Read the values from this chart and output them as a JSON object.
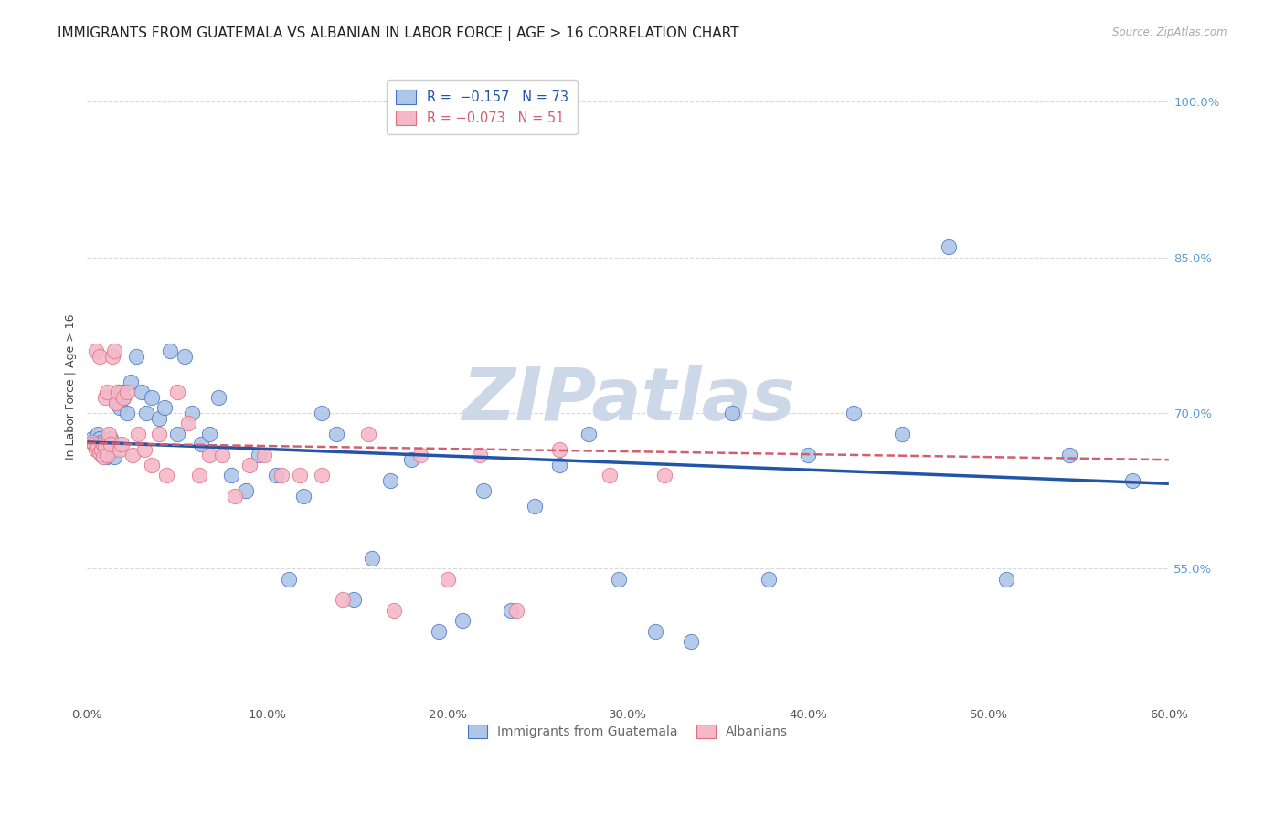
{
  "title": "IMMIGRANTS FROM GUATEMALA VS ALBANIAN IN LABOR FORCE | AGE > 16 CORRELATION CHART",
  "source": "Source: ZipAtlas.com",
  "ylabel": "In Labor Force | Age > 16",
  "xlim": [
    0.0,
    0.6
  ],
  "ylim": [
    0.42,
    1.03
  ],
  "xticks": [
    0.0,
    0.1,
    0.2,
    0.3,
    0.4,
    0.5,
    0.6
  ],
  "xticklabels": [
    "0.0%",
    "10.0%",
    "20.0%",
    "30.0%",
    "40.0%",
    "50.0%",
    "60.0%"
  ],
  "ytick_right_values": [
    0.55,
    0.7,
    0.85,
    1.0
  ],
  "ytick_right_labels": [
    "55.0%",
    "70.0%",
    "85.0%",
    "100.0%"
  ],
  "color_blue_fill": "#aec6e8",
  "color_blue_edge": "#4472c4",
  "color_blue_line": "#2155a8",
  "color_pink_fill": "#f4b8c8",
  "color_pink_edge": "#e07080",
  "color_pink_line": "#d06070",
  "axis_right_color": "#5b9bd5",
  "grid_color": "#d8d8e0",
  "bg_color": "#ffffff",
  "watermark_color": "#ccd8e8",
  "blue_x": [
    0.003,
    0.004,
    0.005,
    0.005,
    0.006,
    0.006,
    0.007,
    0.007,
    0.008,
    0.008,
    0.009,
    0.009,
    0.01,
    0.01,
    0.011,
    0.011,
    0.012,
    0.012,
    0.013,
    0.013,
    0.014,
    0.015,
    0.016,
    0.017,
    0.018,
    0.019,
    0.02,
    0.022,
    0.024,
    0.027,
    0.03,
    0.033,
    0.036,
    0.04,
    0.043,
    0.046,
    0.05,
    0.054,
    0.058,
    0.063,
    0.068,
    0.073,
    0.08,
    0.088,
    0.095,
    0.105,
    0.112,
    0.12,
    0.13,
    0.138,
    0.148,
    0.158,
    0.168,
    0.18,
    0.195,
    0.208,
    0.22,
    0.235,
    0.248,
    0.262,
    0.278,
    0.295,
    0.315,
    0.335,
    0.358,
    0.378,
    0.4,
    0.425,
    0.452,
    0.478,
    0.51,
    0.545,
    0.58
  ],
  "blue_y": [
    0.675,
    0.67,
    0.672,
    0.668,
    0.68,
    0.665,
    0.675,
    0.668,
    0.66,
    0.672,
    0.67,
    0.665,
    0.662,
    0.668,
    0.658,
    0.67,
    0.66,
    0.672,
    0.675,
    0.668,
    0.665,
    0.658,
    0.71,
    0.72,
    0.705,
    0.72,
    0.715,
    0.7,
    0.73,
    0.755,
    0.72,
    0.7,
    0.715,
    0.695,
    0.705,
    0.76,
    0.68,
    0.755,
    0.7,
    0.67,
    0.68,
    0.715,
    0.64,
    0.625,
    0.66,
    0.64,
    0.54,
    0.62,
    0.7,
    0.68,
    0.52,
    0.56,
    0.635,
    0.655,
    0.49,
    0.5,
    0.625,
    0.51,
    0.61,
    0.65,
    0.68,
    0.54,
    0.49,
    0.48,
    0.7,
    0.54,
    0.66,
    0.7,
    0.68,
    0.86,
    0.54,
    0.66,
    0.635
  ],
  "pink_x": [
    0.003,
    0.004,
    0.005,
    0.005,
    0.006,
    0.007,
    0.007,
    0.008,
    0.009,
    0.009,
    0.01,
    0.01,
    0.011,
    0.011,
    0.012,
    0.013,
    0.014,
    0.015,
    0.016,
    0.017,
    0.018,
    0.019,
    0.02,
    0.022,
    0.025,
    0.028,
    0.032,
    0.036,
    0.04,
    0.044,
    0.05,
    0.056,
    0.062,
    0.068,
    0.075,
    0.082,
    0.09,
    0.098,
    0.108,
    0.118,
    0.13,
    0.142,
    0.156,
    0.17,
    0.185,
    0.2,
    0.218,
    0.238,
    0.262,
    0.29,
    0.32
  ],
  "pink_y": [
    0.672,
    0.67,
    0.665,
    0.76,
    0.668,
    0.755,
    0.662,
    0.665,
    0.67,
    0.658,
    0.668,
    0.715,
    0.72,
    0.66,
    0.68,
    0.67,
    0.755,
    0.76,
    0.71,
    0.72,
    0.665,
    0.67,
    0.715,
    0.72,
    0.66,
    0.68,
    0.665,
    0.65,
    0.68,
    0.64,
    0.72,
    0.69,
    0.64,
    0.66,
    0.66,
    0.62,
    0.65,
    0.66,
    0.64,
    0.64,
    0.64,
    0.52,
    0.68,
    0.51,
    0.66,
    0.54,
    0.66,
    0.51,
    0.665,
    0.64,
    0.64
  ],
  "blue_trend_x0": 0.0,
  "blue_trend_x1": 0.6,
  "blue_trend_y0": 0.672,
  "blue_trend_y1": 0.632,
  "pink_trend_x0": 0.0,
  "pink_trend_x1": 0.6,
  "pink_trend_y0": 0.671,
  "pink_trend_y1": 0.655,
  "title_fontsize": 11,
  "tick_fontsize": 9.5,
  "label_fontsize": 9,
  "legend_fontsize": 10.5
}
